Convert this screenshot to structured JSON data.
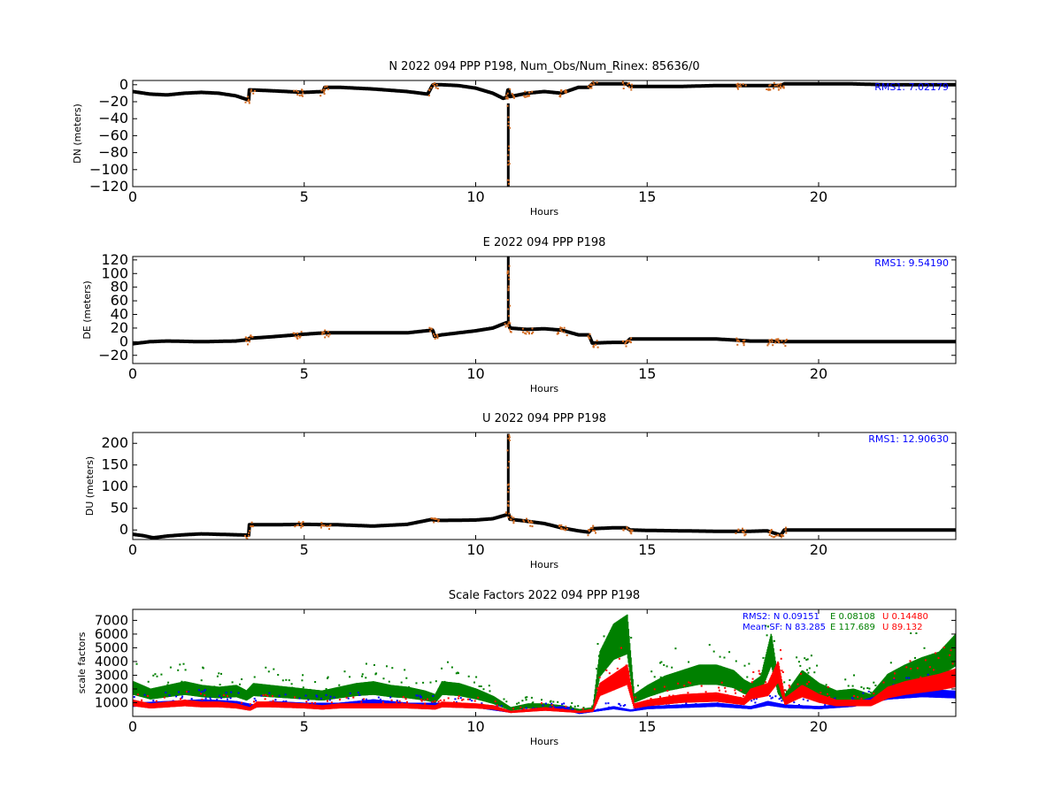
{
  "colors": {
    "background": "#ffffff",
    "axes": "#000000",
    "main_series": "#000000",
    "outlier_points": "#d2691e",
    "blue": "#0000ff",
    "green": "#008000",
    "red": "#ff0000"
  },
  "chart_data": [
    {
      "type": "scatter",
      "title": "N 2022 094 PPP  P198, Num_Obs/Num_Rinex: 85636/0",
      "xlabel": "Hours",
      "ylabel": "DN (meters)",
      "xlim": [
        0,
        24
      ],
      "ylim": [
        -120,
        5
      ],
      "xticks": [
        "0",
        "5",
        "10",
        "15",
        "20"
      ],
      "yticks": [
        "0",
        "−20",
        "−40",
        "−60",
        "−80",
        "−100",
        "−120"
      ],
      "annotation": "RMS1:  7.02179",
      "series": [
        {
          "x": [
            0,
            0.5,
            1,
            1.5,
            2,
            2.5,
            3,
            3.38,
            3.4,
            4,
            4.5,
            5,
            5.55,
            5.6,
            6,
            7,
            8,
            8.6,
            8.75,
            9,
            9.5,
            10,
            10.5,
            10.8,
            10.9,
            10.95,
            11,
            11.5,
            12,
            12.5,
            13,
            13.3,
            13.4,
            14,
            14.4,
            14.5,
            15,
            16,
            17,
            18,
            18.5,
            18.9,
            19,
            20,
            21,
            22,
            23,
            24
          ],
          "y": [
            -8,
            -11,
            -12,
            -10,
            -9,
            -10,
            -13,
            -18,
            -6,
            -7,
            -8,
            -9,
            -8,
            -3,
            -3,
            -5,
            -8,
            -11,
            0,
            0,
            -1,
            -4,
            -10,
            -16,
            -15,
            -4,
            -14,
            -10,
            -8,
            -10,
            -3,
            -3,
            1,
            1,
            1,
            -2,
            -2,
            -2,
            -1,
            -1,
            -1,
            -1,
            1,
            1,
            1,
            0,
            0,
            0
          ]
        }
      ],
      "spike": {
        "x": 10.95,
        "from": -22,
        "to": -120
      }
    },
    {
      "type": "scatter",
      "title": "E 2022 094 PPP  P198",
      "xlabel": "Hours",
      "ylabel": "DE (meters)",
      "xlim": [
        0,
        24
      ],
      "ylim": [
        -32,
        125
      ],
      "xticks": [
        "0",
        "5",
        "10",
        "15",
        "20"
      ],
      "yticks": [
        "120",
        "100",
        "80",
        "60",
        "40",
        "20",
        "0",
        "−20"
      ],
      "annotation": "RMS1:  9.54190",
      "series": [
        {
          "x": [
            0,
            0.5,
            1,
            2,
            3,
            3.38,
            3.4,
            4,
            5,
            5.6,
            6,
            7,
            8,
            8.75,
            8.8,
            9,
            10,
            10.5,
            10.9,
            10.95,
            11,
            11.5,
            12,
            12.5,
            13,
            13.3,
            13.4,
            14,
            14.4,
            14.5,
            15,
            16,
            17,
            17.7,
            18,
            18.5,
            18.9,
            19,
            20,
            21,
            22,
            24
          ],
          "y": [
            -3,
            0,
            1,
            0,
            1,
            3,
            5,
            7,
            11,
            13,
            13,
            13,
            13,
            17,
            8,
            10,
            16,
            20,
            28,
            27,
            20,
            18,
            19,
            17,
            10,
            10,
            -2,
            -1,
            -1,
            4,
            4,
            4,
            4,
            2,
            1,
            1,
            0,
            0,
            0,
            0,
            0,
            0
          ]
        }
      ],
      "spike": {
        "x": 10.95,
        "from": 30,
        "to": 125
      }
    },
    {
      "type": "scatter",
      "title": "U 2022 094 PPP  P198",
      "xlabel": "Hours",
      "ylabel": "DU (meters)",
      "xlim": [
        0,
        24
      ],
      "ylim": [
        -22,
        225
      ],
      "xticks": [
        "0",
        "5",
        "10",
        "15",
        "20"
      ],
      "yticks": [
        "200",
        "150",
        "100",
        "50",
        "0"
      ],
      "annotation": "RMS1: 12.90630",
      "series": [
        {
          "x": [
            0,
            0.3,
            0.6,
            1,
            1.5,
            2,
            2.5,
            3,
            3.38,
            3.4,
            4,
            5,
            6,
            7,
            8,
            8.7,
            9,
            10,
            10.5,
            10.9,
            10.95,
            11,
            11.5,
            12,
            12.5,
            13,
            13.3,
            13.4,
            14,
            14.4,
            14.5,
            15,
            16,
            17,
            18,
            18.5,
            18.9,
            19,
            20,
            21,
            22,
            24
          ],
          "y": [
            -10,
            -13,
            -18,
            -14,
            -11,
            -9,
            -10,
            -11,
            -12,
            12,
            12,
            13,
            12,
            9,
            13,
            24,
            22,
            23,
            26,
            35,
            40,
            25,
            20,
            15,
            5,
            -2,
            -5,
            3,
            5,
            5,
            0,
            -1,
            -2,
            -3,
            -3,
            -2,
            -12,
            0,
            0,
            0,
            0,
            0
          ]
        }
      ],
      "spike": {
        "x": 10.95,
        "from": 40,
        "to": 222
      }
    },
    {
      "type": "scatter",
      "title": "Scale Factors 2022 094 PPP  P198",
      "xlabel": "Hours",
      "ylabel": "scale factors",
      "xlim": [
        0,
        24
      ],
      "ylim": [
        0,
        7800
      ],
      "xticks": [
        "0",
        "5",
        "10",
        "15",
        "20"
      ],
      "yticks": [
        "7000",
        "6000",
        "5000",
        "4000",
        "3000",
        "2000",
        "1000"
      ],
      "annotations": [
        {
          "text": "RMS2: N  0.09151",
          "color": "#0000ff"
        },
        {
          "text": "E  0.08108",
          "color": "#008000"
        },
        {
          "text": "U  0.14480",
          "color": "#ff0000"
        },
        {
          "text": "Mean SF: N  83.285",
          "color": "#0000ff"
        },
        {
          "text": "E 117.689",
          "color": "#008000"
        },
        {
          "text": "U  89.132",
          "color": "#ff0000"
        }
      ],
      "series": [
        {
          "color": "#008000",
          "x": [
            0,
            0.5,
            1,
            1.5,
            2,
            2.5,
            3,
            3.3,
            3.5,
            4,
            4.5,
            5,
            5.5,
            6,
            6.5,
            7,
            7.5,
            8,
            8.5,
            8.8,
            9,
            9.5,
            10,
            10.5,
            11,
            11.5,
            12,
            12.5,
            13,
            13.4,
            13.6,
            14,
            14.4,
            14.6,
            15,
            15.5,
            16,
            16.5,
            17,
            17.5,
            17.8,
            18,
            18.3,
            18.6,
            18.8,
            19,
            19.5,
            20,
            20.5,
            21,
            21.5,
            22,
            22.5,
            23,
            23.5,
            24
          ],
          "y": [
            1900,
            1500,
            1700,
            1900,
            1700,
            1600,
            1700,
            1400,
            1800,
            1700,
            1600,
            1500,
            1400,
            1600,
            1800,
            1900,
            1700,
            1600,
            1400,
            1200,
            1900,
            1800,
            1500,
            1100,
            500,
            700,
            700,
            600,
            400,
            500,
            3500,
            5000,
            5500,
            1200,
            1700,
            2200,
            2500,
            2800,
            2800,
            2500,
            2000,
            1800,
            2200,
            4500,
            2000,
            1200,
            2500,
            1800,
            1400,
            1500,
            1200,
            2300,
            2800,
            3200,
            3500,
            4500
          ]
        },
        {
          "color": "#0000ff",
          "x": [
            0,
            1,
            2,
            3,
            3.5,
            4,
            5,
            6,
            7,
            8,
            9,
            10,
            11,
            12,
            12.5,
            13,
            13.5,
            14,
            14.5,
            15,
            16,
            17,
            18,
            18.5,
            19,
            20,
            21,
            22,
            23,
            24
          ],
          "y": [
            800,
            900,
            1000,
            900,
            700,
            900,
            800,
            800,
            1000,
            800,
            800,
            700,
            300,
            500,
            600,
            200,
            400,
            600,
            400,
            600,
            700,
            800,
            600,
            900,
            700,
            600,
            800,
            1400,
            1600,
            1500
          ]
        },
        {
          "color": "#ff0000",
          "x": [
            0,
            0.5,
            1,
            1.5,
            2,
            2.5,
            3,
            3.4,
            3.6,
            4,
            5,
            5.5,
            6,
            7,
            8,
            8.8,
            9,
            10,
            10.5,
            11,
            11.5,
            12,
            12.5,
            13,
            13.4,
            13.6,
            14,
            14.4,
            14.6,
            15,
            16,
            17,
            17.8,
            18,
            18.5,
            18.8,
            19,
            19.5,
            20,
            20.5,
            21,
            21.5,
            22,
            22.5,
            23,
            23.5,
            24
          ],
          "y": [
            900,
            700,
            800,
            900,
            800,
            800,
            700,
            500,
            800,
            800,
            700,
            600,
            700,
            700,
            700,
            600,
            800,
            700,
            600,
            300,
            400,
            500,
            400,
            300,
            400,
            1800,
            2300,
            2800,
            700,
            900,
            1200,
            1300,
            1000,
            1500,
            1800,
            3000,
            1000,
            1700,
            1200,
            900,
            900,
            900,
            1600,
            1900,
            2100,
            2300,
            2600
          ]
        }
      ]
    }
  ]
}
